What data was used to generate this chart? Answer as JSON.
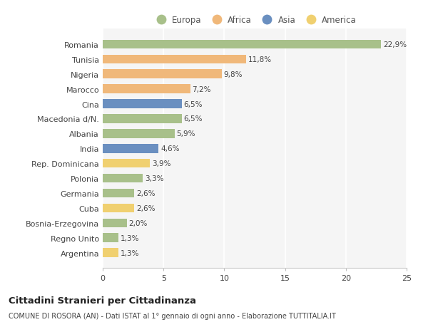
{
  "categories": [
    "Romania",
    "Tunisia",
    "Nigeria",
    "Marocco",
    "Cina",
    "Macedonia d/N.",
    "Albania",
    "India",
    "Rep. Dominicana",
    "Polonia",
    "Germania",
    "Cuba",
    "Bosnia-Erzegovina",
    "Regno Unito",
    "Argentina"
  ],
  "values": [
    22.9,
    11.8,
    9.8,
    7.2,
    6.5,
    6.5,
    5.9,
    4.6,
    3.9,
    3.3,
    2.6,
    2.6,
    2.0,
    1.3,
    1.3
  ],
  "labels": [
    "22,9%",
    "11,8%",
    "9,8%",
    "7,2%",
    "6,5%",
    "6,5%",
    "5,9%",
    "4,6%",
    "3,9%",
    "3,3%",
    "2,6%",
    "2,6%",
    "2,0%",
    "1,3%",
    "1,3%"
  ],
  "continents": [
    "Europa",
    "Africa",
    "Africa",
    "Africa",
    "Asia",
    "Europa",
    "Europa",
    "Asia",
    "America",
    "Europa",
    "Europa",
    "America",
    "Europa",
    "Europa",
    "America"
  ],
  "continent_colors": {
    "Europa": "#a8c08a",
    "Africa": "#f0b87a",
    "Asia": "#6a8fc0",
    "America": "#f0d070"
  },
  "legend_items": [
    "Europa",
    "Africa",
    "Asia",
    "America"
  ],
  "legend_colors": [
    "#a8c08a",
    "#f0b87a",
    "#6a8fc0",
    "#f0d070"
  ],
  "xlim": [
    0,
    25
  ],
  "xticks": [
    0,
    5,
    10,
    15,
    20,
    25
  ],
  "background_color": "#ffffff",
  "plot_bg_color": "#f5f5f5",
  "title": "Cittadini Stranieri per Cittadinanza",
  "subtitle": "COMUNE DI ROSORA (AN) - Dati ISTAT al 1° gennaio di ogni anno - Elaborazione TUTTITALIA.IT",
  "bar_height": 0.6,
  "label_fontsize": 7.5,
  "tick_fontsize": 8,
  "grid_color": "#ffffff",
  "grid_linewidth": 1.2
}
